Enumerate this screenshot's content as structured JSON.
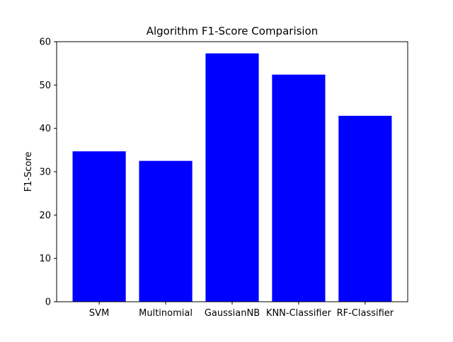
{
  "chart_data": {
    "type": "bar",
    "title": "Algorithm F1-Score Comparision",
    "xlabel": "",
    "ylabel": "F1-Score",
    "categories": [
      "SVM",
      "Multinomial",
      "GaussianNB",
      "KNN-Classifier",
      "RF-Classifier"
    ],
    "values": [
      34.7,
      32.5,
      57.3,
      52.4,
      42.9
    ],
    "ylim": [
      0,
      60
    ],
    "yticks": [
      0,
      10,
      20,
      30,
      40,
      50,
      60
    ],
    "bar_color": "#0000ff",
    "grid": false,
    "legend": "none"
  }
}
